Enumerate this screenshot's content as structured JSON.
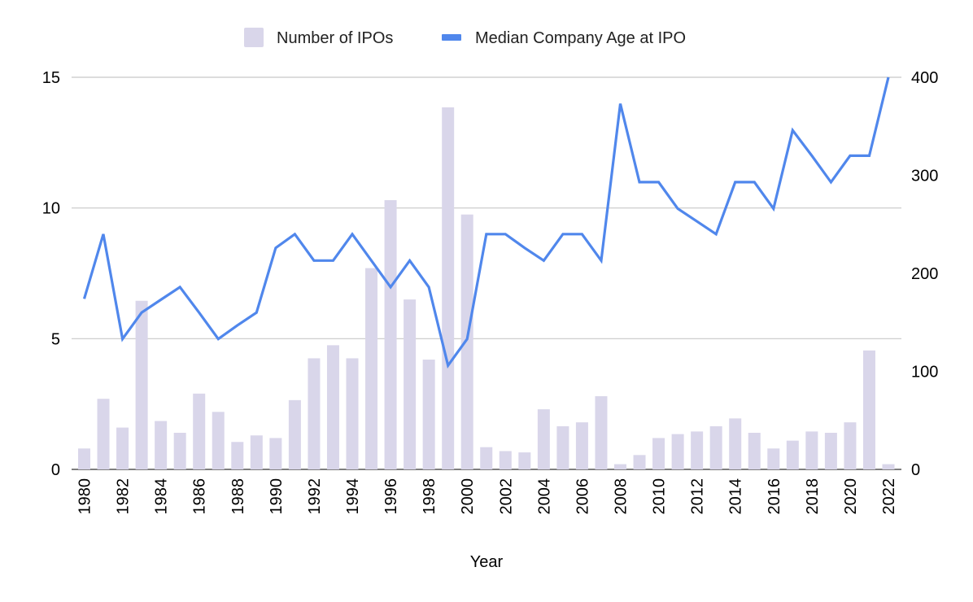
{
  "chart_data": {
    "type": "bar",
    "title": "",
    "xlabel": "Year",
    "ylabel": "",
    "ylabel_right": "",
    "ylim": [
      0,
      15
    ],
    "ylim_right": [
      0,
      400
    ],
    "yticks": [
      "0",
      "5",
      "10",
      "15"
    ],
    "yticks_right": [
      "0",
      "100",
      "200",
      "300",
      "400"
    ],
    "grid": true,
    "legend_position": "top",
    "categories": [
      "1980",
      "1981",
      "1982",
      "1983",
      "1984",
      "1985",
      "1986",
      "1987",
      "1988",
      "1989",
      "1990",
      "1991",
      "1992",
      "1993",
      "1994",
      "1995",
      "1996",
      "1997",
      "1998",
      "1999",
      "2000",
      "2001",
      "2002",
      "2003",
      "2004",
      "2005",
      "2006",
      "2007",
      "2008",
      "2009",
      "2010",
      "2011",
      "2012",
      "2013",
      "2014",
      "2015",
      "2016",
      "2017",
      "2018",
      "2019",
      "2020",
      "2021",
      "2022"
    ],
    "x_tick_labels": [
      "1980",
      "1982",
      "1984",
      "1986",
      "1988",
      "1990",
      "1992",
      "1994",
      "1996",
      "1998",
      "2000",
      "2002",
      "2004",
      "2006",
      "2008",
      "2010",
      "2012",
      "2014",
      "2016",
      "2018",
      "2020",
      "2022"
    ],
    "series": [
      {
        "name": "Number of IPOs",
        "type": "bar",
        "axis": "left",
        "color": "#d9d6ea",
        "values": [
          0.8,
          2.7,
          1.6,
          6.45,
          1.85,
          1.4,
          2.9,
          2.2,
          1.05,
          1.3,
          1.2,
          2.65,
          4.25,
          4.75,
          4.25,
          7.7,
          10.3,
          6.5,
          4.2,
          13.85,
          9.75,
          0.85,
          0.7,
          0.65,
          2.3,
          1.65,
          1.8,
          2.8,
          0.2,
          0.55,
          1.2,
          1.35,
          1.45,
          1.65,
          1.95,
          1.4,
          0.8,
          1.1,
          1.45,
          1.4,
          1.8,
          4.55,
          0.2
        ]
      },
      {
        "name": "Median Company Age at IPO",
        "type": "line",
        "axis": "right",
        "color": "#5087ec",
        "values": [
          174,
          240,
          133,
          160,
          173,
          186,
          160,
          133,
          147,
          160,
          226,
          240,
          213,
          213,
          240,
          213,
          186,
          213,
          186,
          106,
          133,
          240,
          240,
          226,
          213,
          240,
          240,
          213,
          373,
          293,
          293,
          266,
          253,
          240,
          293,
          293,
          266,
          346,
          320,
          293,
          320,
          320,
          400
        ]
      }
    ]
  }
}
